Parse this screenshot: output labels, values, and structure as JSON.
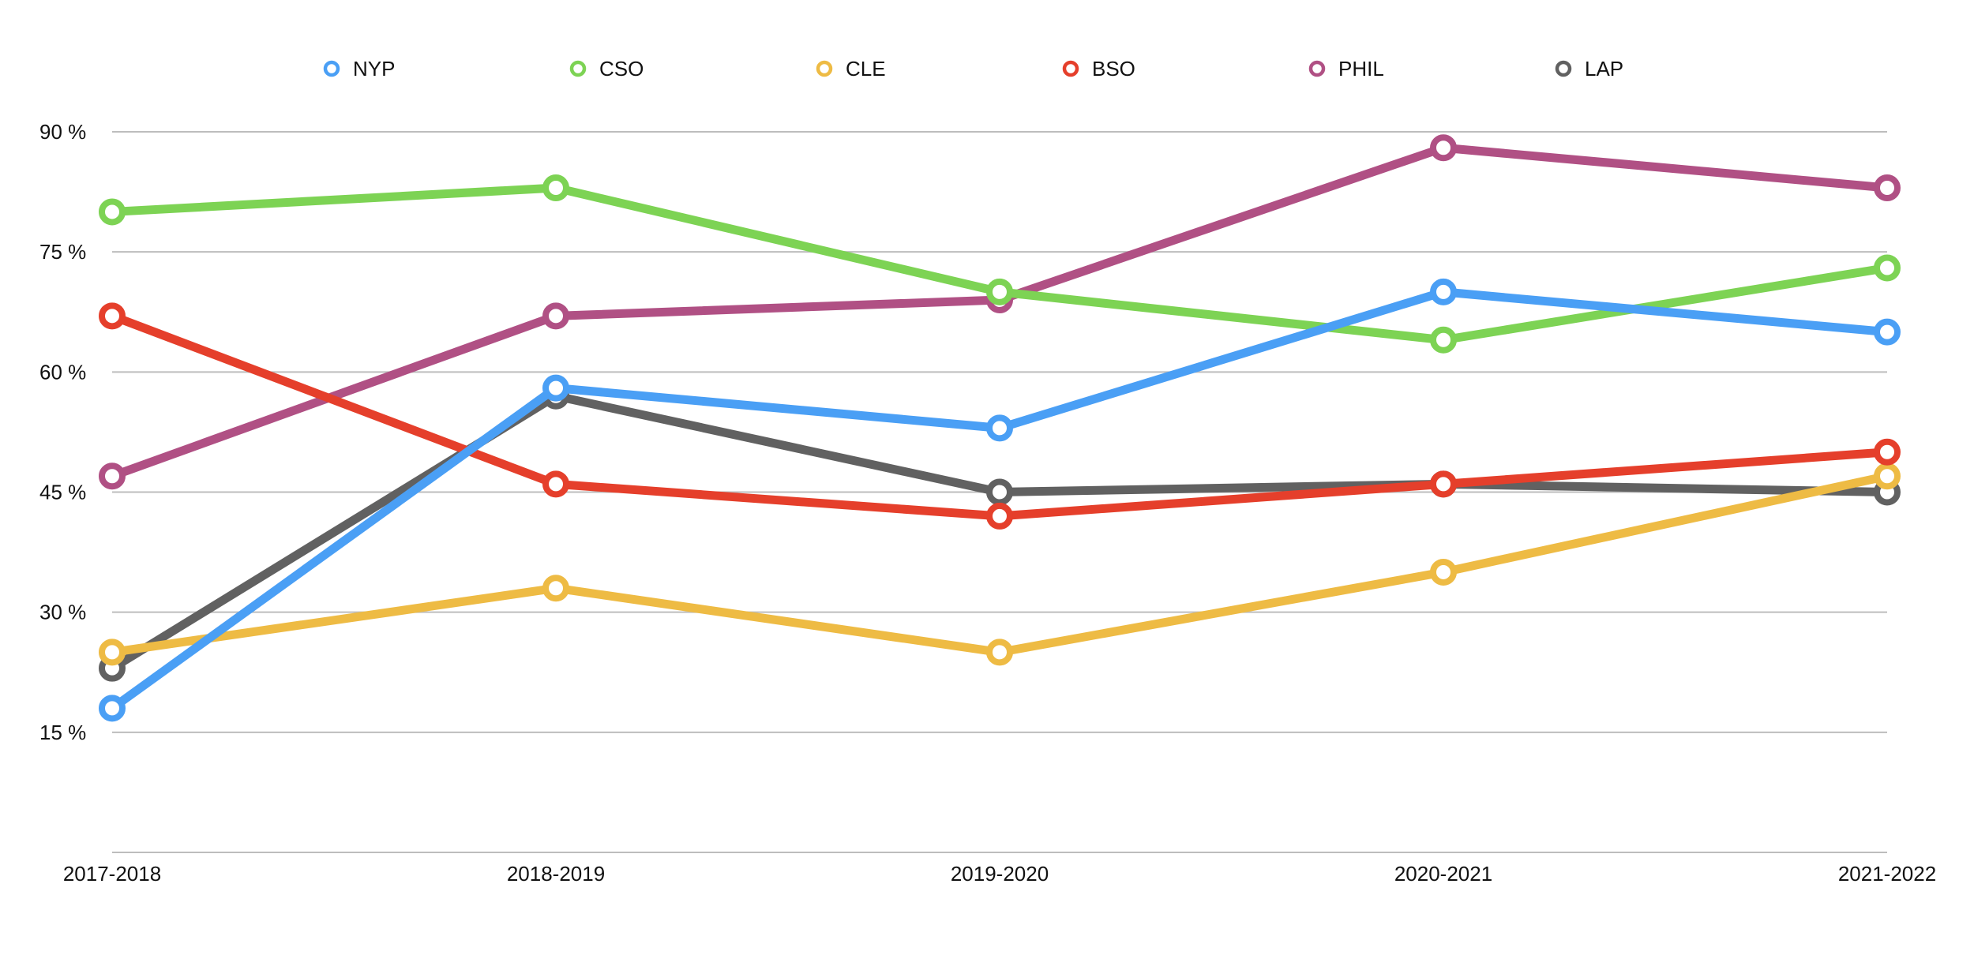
{
  "chart_data": {
    "type": "line",
    "categories": [
      "2017-2018",
      "2018-2019",
      "2019-2020",
      "2020-2021",
      "2021-2022"
    ],
    "y_ticks": [
      {
        "value": 15,
        "label": "15 %"
      },
      {
        "value": 30,
        "label": "30 %"
      },
      {
        "value": 45,
        "label": "45 %"
      },
      {
        "value": 60,
        "label": "60 %"
      },
      {
        "value": 75,
        "label": "75 %"
      },
      {
        "value": 90,
        "label": "90 %"
      }
    ],
    "ylim": [
      0,
      90
    ],
    "grid": true,
    "legend_position": "top",
    "series": [
      {
        "name": "NYP",
        "color": "#4a9ff5",
        "values": [
          18,
          58,
          53,
          70,
          65
        ]
      },
      {
        "name": "CSO",
        "color": "#7dd354",
        "values": [
          80,
          83,
          70,
          64,
          73
        ]
      },
      {
        "name": "CLE",
        "color": "#eebb44",
        "values": [
          25,
          33,
          25,
          35,
          47
        ]
      },
      {
        "name": "BSO",
        "color": "#e53f2b",
        "values": [
          67,
          46,
          42,
          46,
          50
        ]
      },
      {
        "name": "PHIL",
        "color": "#b05084",
        "values": [
          47,
          67,
          69,
          88,
          83
        ]
      },
      {
        "name": "LAP",
        "color": "#616161",
        "values": [
          23,
          57,
          45,
          46,
          45
        ]
      }
    ],
    "draw_order": [
      "LAP",
      "CLE",
      "PHIL",
      "CSO",
      "BSO",
      "NYP"
    ]
  }
}
